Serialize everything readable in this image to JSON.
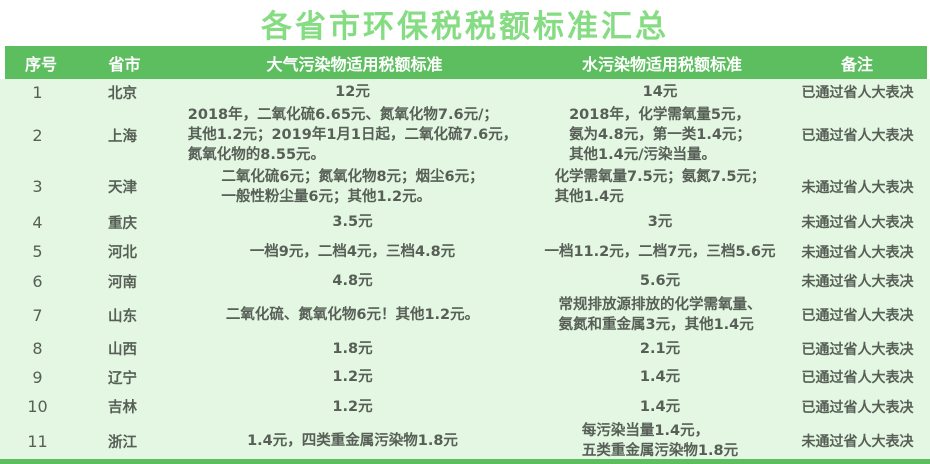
{
  "title": "各省市环保税税额标准汇总",
  "colors": {
    "title_color": "#85dc82",
    "header_bg": "#5cbe5f",
    "header_text": "#ffffff",
    "body_bg": "#e3f7e2",
    "text_color": "#575f57"
  },
  "chart_data": {
    "type": "table",
    "title": "各省市环保税税额标准汇总",
    "columns": [
      "序号",
      "省市",
      "大气污染物适用税额标准",
      "水污染物适用税额标准",
      "备注"
    ],
    "rows": [
      [
        "1",
        "北京",
        "12元",
        "14元",
        "已通过省人大表决"
      ],
      [
        "2",
        "上海",
        "2018年，二氧化硫6.65元、氮氧化物7.6元/；\n其他1.2元；2019年1月1日起，二氧化硫7.6元，\n氮氧化物的8.55元。",
        "2018年，化学需氧量5元，\n氨为4.8元，第一类1.4元；\n其他1.4元/污染当量。",
        "已通过省人大表决"
      ],
      [
        "3",
        "天津",
        "二氧化硫6元；氮氧化物8元；烟尘6元；\n一般性粉尘量6元；其他1.2元。",
        "化学需氧量7.5元；氨氮7.5元；\n其他1.4元",
        "未通过省人大表决"
      ],
      [
        "4",
        "重庆",
        "3.5元",
        "3元",
        "未通过省人大表决"
      ],
      [
        "5",
        "河北",
        "一档9元，二档4元，三档4.8元",
        "一档11.2元，二档7元，三档5.6元",
        "未通过省人大表决"
      ],
      [
        "6",
        "河南",
        "4.8元",
        "5.6元",
        "未通过省人大表决"
      ],
      [
        "7",
        "山东",
        "二氧化硫、氮氧化物6元！其他1.2元。",
        "常规排放源排放的化学需氧量、\n氨氮和重金属3元，其他1.4元",
        "已通过省人大表决"
      ],
      [
        "8",
        "山西",
        "1.8元",
        "2.1元",
        "已通过省人大表决"
      ],
      [
        "9",
        "辽宁",
        "1.2元",
        "1.4元",
        "已通过省人大表决"
      ],
      [
        "10",
        "吉林",
        "1.2元",
        "1.4元",
        "已通过省人大表决"
      ],
      [
        "11",
        "浙江",
        "1.4元，四类重金属污染物1.8元",
        "每污染当量1.4元，\n五类重金属污染物1.8元",
        "未通过省人大表决"
      ]
    ]
  }
}
